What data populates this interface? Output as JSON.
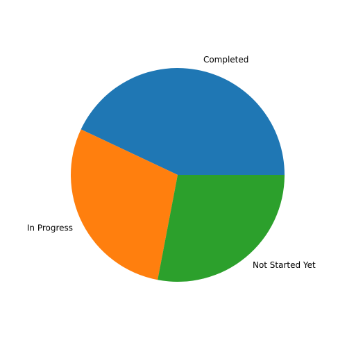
{
  "chart_data": {
    "type": "pie",
    "categories": [
      "Completed",
      "In Progress",
      "Not Started Yet"
    ],
    "values": [
      43,
      29,
      28
    ],
    "colors": [
      "#1f77b4",
      "#ff7f0e",
      "#2ca02c"
    ],
    "start_angle_deg": 0,
    "direction": "counterclockwise",
    "legend": "none",
    "title": ""
  }
}
